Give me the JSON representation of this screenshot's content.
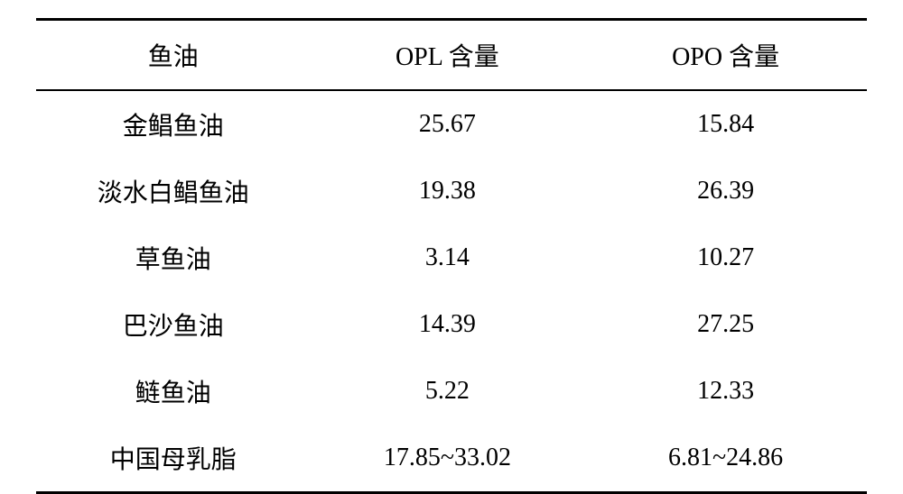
{
  "table": {
    "columns": [
      "鱼油",
      "OPL 含量",
      "OPO 含量"
    ],
    "rows": [
      [
        "金鲳鱼油",
        "25.67",
        "15.84"
      ],
      [
        "淡水白鲳鱼油",
        "19.38",
        "26.39"
      ],
      [
        "草鱼油",
        "3.14",
        "10.27"
      ],
      [
        "巴沙鱼油",
        "14.39",
        "27.25"
      ],
      [
        "鲢鱼油",
        "5.22",
        "12.33"
      ],
      [
        "中国母乳脂",
        "17.85~33.02",
        "6.81~24.86"
      ]
    ],
    "border_top_width": 3,
    "border_header_width": 2,
    "border_bottom_width": 3,
    "border_color": "#000000",
    "background_color": "#ffffff",
    "text_color": "#000000",
    "header_fontsize": 28,
    "cell_fontsize": 28,
    "column_widths": [
      "33%",
      "33%",
      "34%"
    ],
    "alignment": "center"
  }
}
